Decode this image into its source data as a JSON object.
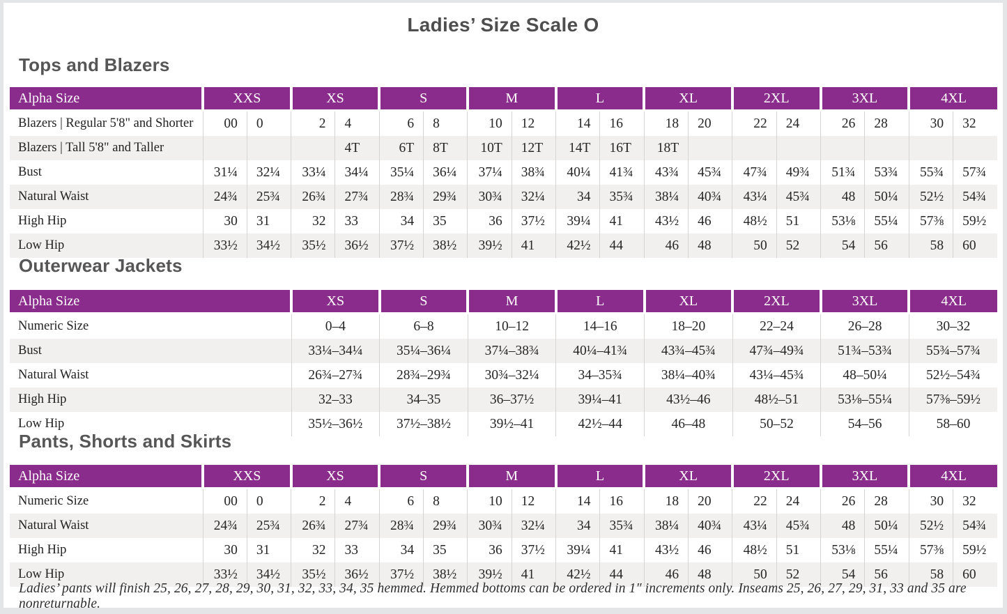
{
  "title": "Ladies’ Size Scale O",
  "accent_color": "#8a2c8b",
  "stripe_color": "#f1f0ee",
  "footnote": "Ladies’ pants will finish 25, 26, 27, 28, 29, 30, 31, 32, 33, 34, 35 hemmed. Hemmed bottoms can be ordered in 1″ increments only. Inseams 25, 26, 27, 29, 31, 33 and 35 are nonreturnable.",
  "sections": [
    {
      "heading": "Tops and Blazers",
      "table": {
        "type": "paired",
        "label_header": "Alpha Size",
        "sizes": [
          "XXS",
          "XS",
          "S",
          "M",
          "L",
          "XL",
          "2XL",
          "3XL",
          "4XL"
        ],
        "rows": [
          {
            "label": "Blazers | Regular 5'8\" and Shorter",
            "cells": [
              "00",
              "0",
              "2",
              "4",
              "6",
              "8",
              "10",
              "12",
              "14",
              "16",
              "18",
              "20",
              "22",
              "24",
              "26",
              "28",
              "30",
              "32"
            ]
          },
          {
            "label": "Blazers | Tall 5'8\" and Taller",
            "cells": [
              "",
              "",
              "",
              "4T",
              "6T",
              "8T",
              "10T",
              "12T",
              "14T",
              "16T",
              "18T",
              "",
              "",
              "",
              "",
              "",
              "",
              ""
            ]
          },
          {
            "label": "Bust",
            "cells": [
              "31¼",
              "32¼",
              "33¼",
              "34¼",
              "35¼",
              "36¼",
              "37¼",
              "38¾",
              "40¼",
              "41¾",
              "43¾",
              "45¾",
              "47¾",
              "49¾",
              "51¾",
              "53¾",
              "55¾",
              "57¾"
            ]
          },
          {
            "label": "Natural Waist",
            "cells": [
              "24¾",
              "25¾",
              "26¾",
              "27¾",
              "28¾",
              "29¾",
              "30¾",
              "32¼",
              "34",
              "35¾",
              "38¼",
              "40¾",
              "43¼",
              "45¾",
              "48",
              "50¼",
              "52½",
              "54¾"
            ]
          },
          {
            "label": "High Hip",
            "cells": [
              "30",
              "31",
              "32",
              "33",
              "34",
              "35",
              "36",
              "37½",
              "39¼",
              "41",
              "43½",
              "46",
              "48½",
              "51",
              "53⅛",
              "55¼",
              "57⅜",
              "59½"
            ]
          },
          {
            "label": "Low Hip",
            "cells": [
              "33½",
              "34½",
              "35½",
              "36½",
              "37½",
              "38½",
              "39½",
              "41",
              "42½",
              "44",
              "46",
              "48",
              "50",
              "52",
              "54",
              "56",
              "58",
              "60"
            ]
          }
        ]
      }
    },
    {
      "heading": "Outerwear Jackets",
      "table": {
        "type": "single",
        "label_header": "Alpha Size",
        "sizes": [
          "XS",
          "S",
          "M",
          "L",
          "XL",
          "2XL",
          "3XL",
          "4XL"
        ],
        "rows": [
          {
            "label": "Numeric Size",
            "cells": [
              "0–4",
              "6–8",
              "10–12",
              "14–16",
              "18–20",
              "22–24",
              "26–28",
              "30–32"
            ]
          },
          {
            "label": "Bust",
            "cells": [
              "33¼–34¼",
              "35¼–36¼",
              "37¼–38¾",
              "40¼–41¾",
              "43¾–45¾",
              "47¾–49¾",
              "51¾–53¾",
              "55¾–57¾"
            ]
          },
          {
            "label": "Natural Waist",
            "cells": [
              "26¾–27¾",
              "28¾–29¾",
              "30¾–32¼",
              "34–35¾",
              "38¼–40¾",
              "43¼–45¾",
              "48–50¼",
              "52½–54¾"
            ]
          },
          {
            "label": "High Hip",
            "cells": [
              "32–33",
              "34–35",
              "36–37½",
              "39¼–41",
              "43½–46",
              "48½–51",
              "53⅛–55¼",
              "57⅜–59½"
            ]
          },
          {
            "label": "Low Hip",
            "cells": [
              "35½–36½",
              "37½–38½",
              "39½–41",
              "42½–44",
              "46–48",
              "50–52",
              "54–56",
              "58–60"
            ]
          }
        ]
      }
    },
    {
      "heading": "Pants, Shorts and Skirts",
      "table": {
        "type": "paired",
        "label_header": "Alpha Size",
        "sizes": [
          "XXS",
          "XS",
          "S",
          "M",
          "L",
          "XL",
          "2XL",
          "3XL",
          "4XL"
        ],
        "rows": [
          {
            "label": "Numeric Size",
            "cells": [
              "00",
              "0",
              "2",
              "4",
              "6",
              "8",
              "10",
              "12",
              "14",
              "16",
              "18",
              "20",
              "22",
              "24",
              "26",
              "28",
              "30",
              "32"
            ]
          },
          {
            "label": "Natural Waist",
            "cells": [
              "24¾",
              "25¾",
              "26¾",
              "27¾",
              "28¾",
              "29¾",
              "30¾",
              "32¼",
              "34",
              "35¾",
              "38¼",
              "40¾",
              "43¼",
              "45¾",
              "48",
              "50¼",
              "52½",
              "54¾"
            ]
          },
          {
            "label": "High Hip",
            "cells": [
              "30",
              "31",
              "32",
              "33",
              "34",
              "35",
              "36",
              "37½",
              "39¼",
              "41",
              "43½",
              "46",
              "48½",
              "51",
              "53⅛",
              "55¼",
              "57⅜",
              "59½"
            ]
          },
          {
            "label": "Low Hip",
            "cells": [
              "33½",
              "34½",
              "35½",
              "36½",
              "37½",
              "38½",
              "39½",
              "41",
              "42½",
              "44",
              "46",
              "48",
              "50",
              "52",
              "54",
              "56",
              "58",
              "60"
            ]
          }
        ]
      }
    }
  ]
}
